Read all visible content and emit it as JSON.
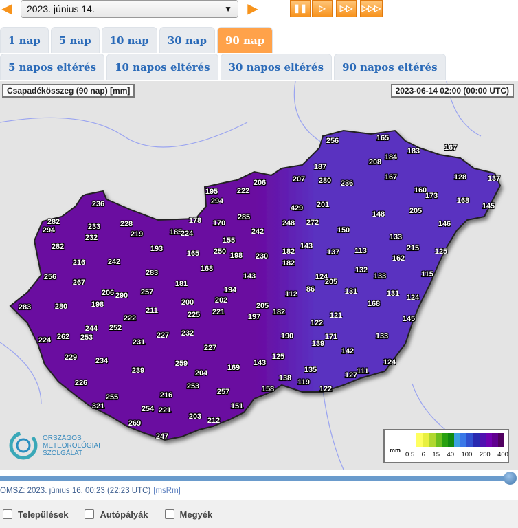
{
  "toolbar": {
    "date_value": "2023. június 14.",
    "prev_icon": "arrow-left-icon",
    "next_icon": "arrow-right-icon",
    "playback": [
      {
        "name": "pause-button",
        "glyph": "❚❚"
      },
      {
        "name": "play-button",
        "glyph": "▷"
      },
      {
        "name": "fast-play-button",
        "glyph": "▷▷"
      },
      {
        "name": "fastest-play-button",
        "glyph": "▷▷▷"
      }
    ]
  },
  "period_tabs": [
    {
      "label": "1 nap",
      "active": false
    },
    {
      "label": "5 nap",
      "active": false
    },
    {
      "label": "10 nap",
      "active": false
    },
    {
      "label": "30 nap",
      "active": false
    },
    {
      "label": "90 nap",
      "active": true
    }
  ],
  "anomaly_tabs": [
    {
      "label": "5 napos eltérés"
    },
    {
      "label": "10 napos eltérés"
    },
    {
      "label": "30 napos eltérés"
    },
    {
      "label": "90 napos eltérés"
    }
  ],
  "map": {
    "title": "Csapadékösszeg (90 nap) [mm]",
    "timestamp": "2023-06-14 02:00 (00:00 UTC)",
    "logo": {
      "line1": "ORSZÁGOS",
      "line2": "METEOROLÓGIAI",
      "line3": "SZOLGÁLAT"
    },
    "legend": {
      "unit": "mm",
      "ticks": [
        "0.5",
        "6",
        "15",
        "40",
        "100",
        "250",
        "400"
      ],
      "colors": [
        "#ffffff",
        "#ffff60",
        "#e8f040",
        "#b0d830",
        "#6cc020",
        "#28a010",
        "#108a10",
        "#3aa0e0",
        "#3a78e8",
        "#3050d0",
        "#2828b0",
        "#5010b0",
        "#7000b0",
        "#600090",
        "#500060"
      ]
    },
    "colors": {
      "west_fill": "#6a0aa0",
      "east_fill": "#5a30c0",
      "background": "#e4e4e4"
    },
    "stations": [
      236,
      282,
      294,
      233,
      228,
      219,
      232,
      282,
      185,
      224,
      178,
      170,
      285,
      193,
      216,
      242,
      256,
      267,
      283,
      165,
      250,
      155,
      198,
      168,
      206,
      290,
      257,
      181,
      198,
      283,
      280,
      200,
      202,
      194,
      222,
      211,
      225,
      221,
      197,
      205,
      182,
      244,
      252,
      224,
      262,
      253,
      231,
      227,
      232,
      227,
      229,
      234,
      239,
      259,
      204,
      169,
      226,
      253,
      257,
      255,
      216,
      321,
      254,
      221,
      151,
      203,
      212,
      269,
      247,
      256,
      165,
      183,
      167,
      208,
      184,
      187,
      207,
      206,
      222,
      195,
      294,
      280,
      236,
      167,
      128,
      137,
      160,
      173,
      168,
      145,
      429,
      201,
      205,
      148,
      248,
      272,
      146,
      242,
      150,
      133,
      215,
      125,
      143,
      182,
      137,
      113,
      162,
      230,
      182,
      143,
      132,
      133,
      115,
      124,
      205,
      112,
      86,
      131,
      131,
      124,
      168,
      145,
      121,
      122,
      171,
      190,
      139,
      133,
      142,
      125,
      143,
      124,
      135,
      111,
      127,
      138,
      119,
      158,
      122
    ]
  },
  "timeline": {
    "progress": 1.0
  },
  "status": {
    "text": "OMSZ: 2023. június 16. 00:23 (22:23  UTC)",
    "code": "[msRm]"
  },
  "options": [
    {
      "label": "Települések",
      "checked": false
    },
    {
      "label": "Autópályák",
      "checked": false
    },
    {
      "label": "Megyék",
      "checked": false
    }
  ]
}
